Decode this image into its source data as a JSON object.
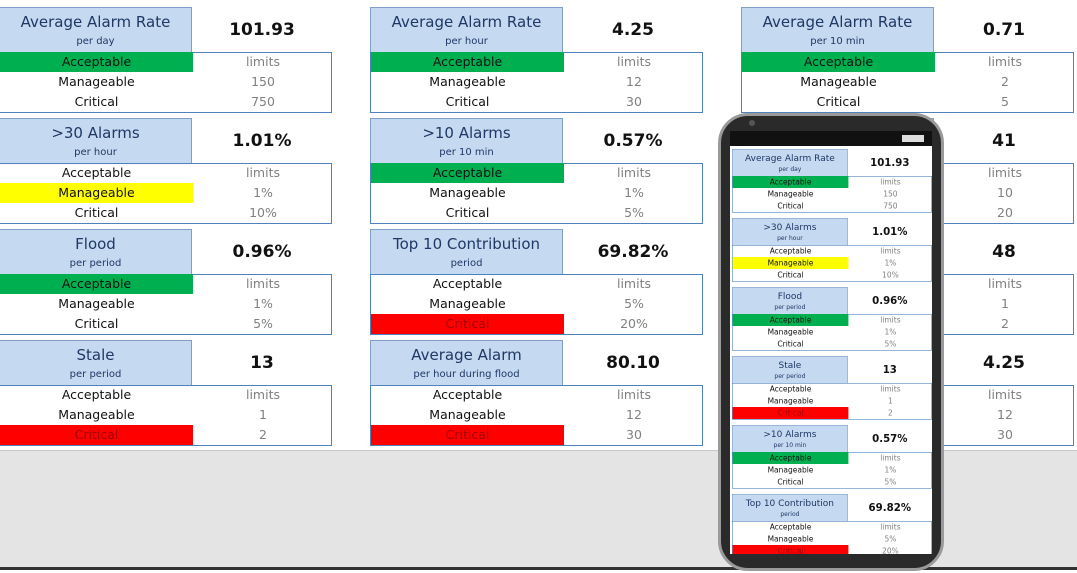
{
  "cards": [
    {
      "title": "Average Alarm Rate",
      "subtitle": "per day",
      "value": "101.93",
      "rows": [
        {
          "label": "Acceptable",
          "limit": "limits",
          "fill": "#00b050"
        },
        {
          "label": "Manageable",
          "limit": "150"
        },
        {
          "label": "Critical",
          "limit": "750"
        }
      ]
    },
    {
      "title": "Average Alarm Rate",
      "subtitle": "per hour",
      "value": "4.25",
      "rows": [
        {
          "label": "Acceptable",
          "limit": "limits",
          "fill": "#00b050"
        },
        {
          "label": "Manageable",
          "limit": "12"
        },
        {
          "label": "Critical",
          "limit": "30"
        }
      ]
    },
    {
      "title": "Average Alarm Rate",
      "subtitle": "per 10 min",
      "value": "0.71",
      "rows": [
        {
          "label": "Acceptable",
          "limit": "limits",
          "fill": "#00b050"
        },
        {
          "label": "Manageable",
          "limit": "2"
        },
        {
          "label": "Critical",
          "limit": "5"
        }
      ]
    },
    {
      "title": ">30 Alarms",
      "subtitle": "per hour",
      "value": "1.01%",
      "rows": [
        {
          "label": "Acceptable",
          "limit": "limits"
        },
        {
          "label": "Manageable",
          "limit": "1%",
          "fill": "#ffff00"
        },
        {
          "label": "Critical",
          "limit": "10%"
        }
      ]
    },
    {
      "title": ">10 Alarms",
      "subtitle": "per 10 min",
      "value": "0.57%",
      "rows": [
        {
          "label": "Acceptable",
          "limit": "limits",
          "fill": "#00b050"
        },
        {
          "label": "Manageable",
          "limit": "1%"
        },
        {
          "label": "Critical",
          "limit": "5%"
        }
      ]
    },
    {
      "value": "41",
      "rows": [
        {
          "limit": "limits"
        },
        {
          "limit": "10"
        },
        {
          "limit": "20"
        }
      ]
    },
    {
      "title": "Flood",
      "subtitle": "per period",
      "value": "0.96%",
      "rows": [
        {
          "label": "Acceptable",
          "limit": "limits",
          "fill": "#00b050"
        },
        {
          "label": "Manageable",
          "limit": "1%"
        },
        {
          "label": "Critical",
          "limit": "5%"
        }
      ]
    },
    {
      "title": "Top 10 Contribution",
      "subtitle": "period",
      "value": "69.82%",
      "rows": [
        {
          "label": "Acceptable",
          "limit": "limits"
        },
        {
          "label": "Manageable",
          "limit": "5%"
        },
        {
          "label": "Critical",
          "limit": "20%",
          "fill": "#ff0000",
          "text": "#a00000"
        }
      ]
    },
    {
      "value": "48",
      "rows": [
        {
          "limit": "limits"
        },
        {
          "limit": "1"
        },
        {
          "limit": "2"
        }
      ]
    },
    {
      "title": "Stale",
      "subtitle": "per period",
      "value": "13",
      "rows": [
        {
          "label": "Acceptable",
          "limit": "limits"
        },
        {
          "label": "Manageable",
          "limit": "1"
        },
        {
          "label": "Critical",
          "limit": "2",
          "fill": "#ff0000",
          "text": "#a00000"
        }
      ]
    },
    {
      "title": "Average Alarm",
      "subtitle": "per hour during flood",
      "value": "80.10",
      "rows": [
        {
          "label": "Acceptable",
          "limit": "limits"
        },
        {
          "label": "Manageable",
          "limit": "12"
        },
        {
          "label": "Critical",
          "limit": "30",
          "fill": "#ff0000",
          "text": "#a00000"
        }
      ]
    },
    {
      "value": "4.25",
      "rows": [
        {
          "limit": "limits"
        },
        {
          "limit": "12"
        },
        {
          "limit": "30"
        }
      ]
    }
  ],
  "phone": {
    "cards": [
      {
        "title": "Average Alarm Rate",
        "subtitle": "per day",
        "value": "101.93",
        "rows": [
          {
            "label": "Acceptable",
            "limit": "limits",
            "fill": "#00b050"
          },
          {
            "label": "Manageable",
            "limit": "150"
          },
          {
            "label": "Critical",
            "limit": "750"
          }
        ]
      },
      {
        "title": ">30 Alarms",
        "subtitle": "per hour",
        "value": "1.01%",
        "rows": [
          {
            "label": "Acceptable",
            "limit": "limits"
          },
          {
            "label": "Manageable",
            "limit": "1%",
            "fill": "#ffff00"
          },
          {
            "label": "Critical",
            "limit": "10%"
          }
        ]
      },
      {
        "title": "Flood",
        "subtitle": "per period",
        "value": "0.96%",
        "rows": [
          {
            "label": "Acceptable",
            "limit": "limits",
            "fill": "#00b050"
          },
          {
            "label": "Manageable",
            "limit": "1%"
          },
          {
            "label": "Critical",
            "limit": "5%"
          }
        ]
      },
      {
        "title": "Stale",
        "subtitle": "per period",
        "value": "13",
        "rows": [
          {
            "label": "Acceptable",
            "limit": "limits"
          },
          {
            "label": "Manageable",
            "limit": "1"
          },
          {
            "label": "Critical",
            "limit": "2",
            "fill": "#ff0000",
            "text": "#a00000"
          }
        ]
      },
      {
        "title": ">10 Alarms",
        "subtitle": "per 10 min",
        "value": "0.57%",
        "rows": [
          {
            "label": "Acceptable",
            "limit": "limits",
            "fill": "#00b050"
          },
          {
            "label": "Manageable",
            "limit": "1%"
          },
          {
            "label": "Critical",
            "limit": "5%"
          }
        ]
      },
      {
        "title": "Top 10 Contribution",
        "subtitle": "period",
        "value": "69.82%",
        "rows": [
          {
            "label": "Acceptable",
            "limit": "limits"
          },
          {
            "label": "Manageable",
            "limit": "5%"
          },
          {
            "label": "Critical",
            "limit": "20%",
            "fill": "#ff0000",
            "text": "#a00000"
          }
        ]
      }
    ]
  }
}
